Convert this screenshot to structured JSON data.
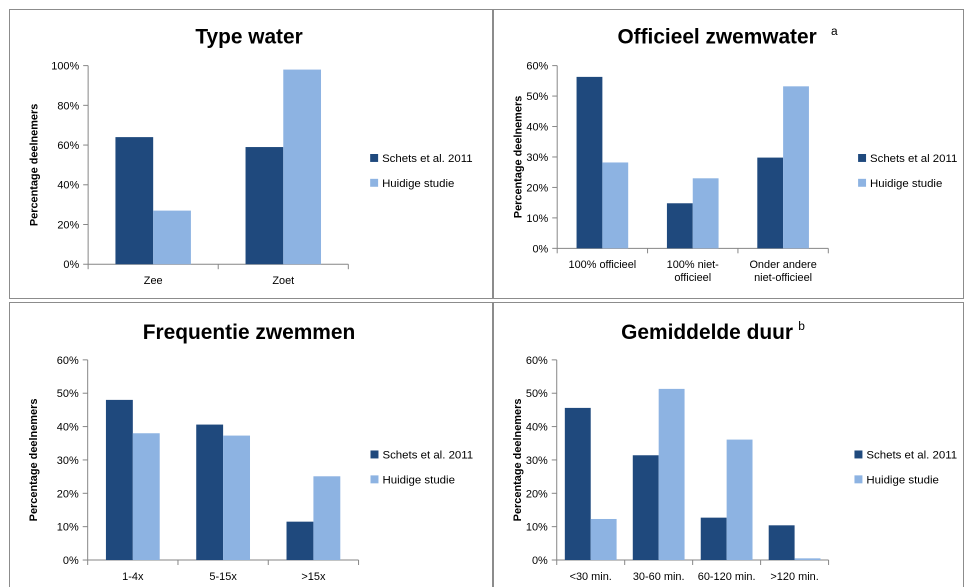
{
  "colors": {
    "series_0": "#1f497d",
    "series_1": "#8db3e2",
    "axis": "#868686"
  },
  "chart_data": [
    {
      "type": "bar",
      "title": "Type water",
      "superscript": "",
      "ylabel": "Percentage deelnemers",
      "ylim": [
        0,
        100
      ],
      "yticks": [
        "0%",
        "20%",
        "40%",
        "60%",
        "80%",
        "100%"
      ],
      "categories": [
        [
          "Zee"
        ],
        [
          "Zoet"
        ]
      ],
      "series": [
        {
          "name": "Schets et al. 2011",
          "values": [
            64,
            59
          ]
        },
        {
          "name": "Huidige studie",
          "values": [
            27,
            98
          ]
        }
      ],
      "legend": "right"
    },
    {
      "type": "bar",
      "title": "Officieel zwemwater",
      "superscript": "a",
      "ylabel": "Percentage deelnemers",
      "ylim": [
        0,
        60
      ],
      "yticks": [
        "0%",
        "10%",
        "20%",
        "30%",
        "40%",
        "50%",
        "60%"
      ],
      "categories": [
        [
          "100% officieel"
        ],
        [
          "100% niet-",
          "officieel"
        ],
        [
          "Onder andere",
          "niet-officieel"
        ]
      ],
      "series": [
        {
          "name": "Schets et al 2011",
          "values": [
            56.3,
            14.8,
            29.8
          ]
        },
        {
          "name": "Huidige studie",
          "values": [
            28.2,
            23,
            53.2
          ]
        }
      ],
      "legend": "right"
    },
    {
      "type": "bar",
      "title": "Frequentie zwemmen",
      "superscript": "",
      "ylabel": "Percentage deelnemers",
      "ylim": [
        0,
        60
      ],
      "yticks": [
        "0%",
        "10%",
        "20%",
        "30%",
        "40%",
        "50%",
        "60%"
      ],
      "categories": [
        [
          "1-4x"
        ],
        [
          "5-15x"
        ],
        [
          ">15x"
        ]
      ],
      "series": [
        {
          "name": "Schets et al. 2011",
          "values": [
            48,
            40.6,
            11.5
          ]
        },
        {
          "name": "Huidige studie",
          "values": [
            38,
            37.3,
            25.1
          ]
        }
      ],
      "legend": "right"
    },
    {
      "type": "bar",
      "title": "Gemiddelde duur",
      "superscript": "b",
      "ylabel": "Percentage deelnemers",
      "ylim": [
        0,
        60
      ],
      "yticks": [
        "0%",
        "10%",
        "20%",
        "30%",
        "40%",
        "50%",
        "60%"
      ],
      "categories": [
        [
          "<30 min."
        ],
        [
          "30-60 min."
        ],
        [
          "60-120 min."
        ],
        [
          ">120 min."
        ]
      ],
      "series": [
        {
          "name": "Schets et al. 2011",
          "values": [
            45.6,
            31.4,
            12.7,
            10.4
          ]
        },
        {
          "name": "Huidige studie",
          "values": [
            12.3,
            51.3,
            36.1,
            0.5
          ]
        }
      ],
      "legend": "right"
    }
  ]
}
